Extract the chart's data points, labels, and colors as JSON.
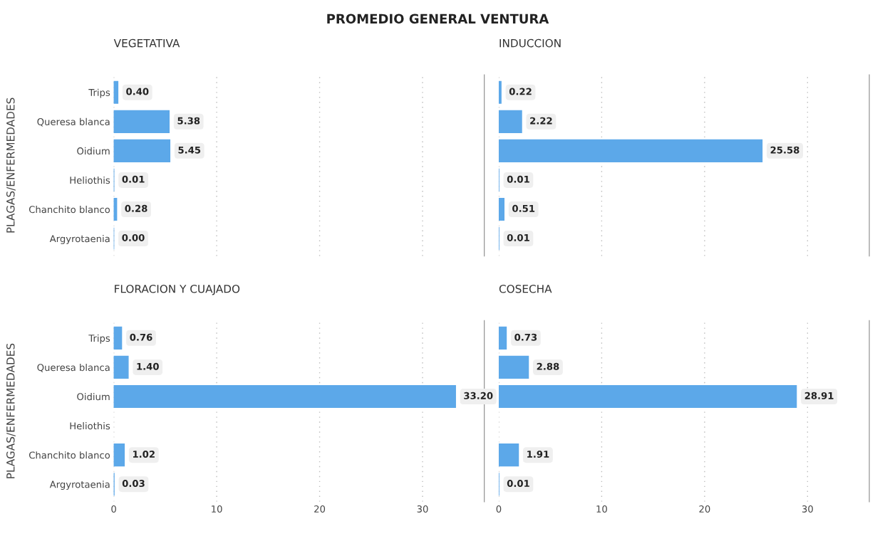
{
  "chart_data": [
    {
      "type": "bar",
      "orientation": "horizontal",
      "title": "VEGETATIVA",
      "ylabel": "PLAGAS/ENFERMEDADES",
      "annotations": [
        "PROMEDIO GENERAL VENTURA"
      ],
      "categories": [
        "Trips",
        "Queresa blanca",
        "Oidium",
        "Heliothis",
        "Chanchito blanco",
        "Argyrotaenia"
      ],
      "values": [
        0.4,
        5.38,
        5.45,
        0.01,
        0.28,
        0.0
      ],
      "value_labels": [
        "0.40",
        "5.38",
        "5.45",
        "0.01",
        "0.28",
        "0.00"
      ],
      "color": "#5ca8e9",
      "xlim": [
        0,
        36
      ],
      "xticks": [
        0,
        10,
        20,
        30
      ],
      "grid": "x",
      "tick_labels": "y"
    },
    {
      "type": "bar",
      "orientation": "horizontal",
      "title": "INDUCCION",
      "categories": [
        null,
        null,
        null,
        null,
        null,
        null
      ],
      "values": [
        0.22,
        2.22,
        25.58,
        0.01,
        0.51,
        0.01
      ],
      "value_labels": [
        "0.22",
        "2.22",
        "25.58",
        "0.01",
        "0.51",
        "0.01"
      ],
      "color": "#5ca8e9",
      "xlim": [
        0,
        36
      ],
      "xticks": [
        0,
        10,
        20,
        30
      ],
      "grid": "x",
      "tick_labels": false
    },
    {
      "type": "bar",
      "orientation": "horizontal",
      "title": "FLORACION Y CUAJADO",
      "ylabel": "PLAGAS/ENFERMEDADES",
      "categories": [
        "Trips",
        "Queresa blanca",
        "Oidium",
        "Heliothis",
        "Chanchito blanco",
        "Argyrotaenia"
      ],
      "values": [
        0.76,
        1.4,
        33.2,
        null,
        1.02,
        0.03
      ],
      "value_labels": [
        "0.76",
        "1.40",
        "33.20",
        null,
        "1.02",
        "0.03"
      ],
      "color": "#5ca8e9",
      "xlim": [
        0,
        36
      ],
      "xticks": [
        0,
        10,
        20,
        30
      ],
      "grid": "x"
    },
    {
      "type": "bar",
      "orientation": "horizontal",
      "title": "COSECHA",
      "categories": [
        null,
        null,
        null,
        null,
        null,
        null
      ],
      "values": [
        0.73,
        2.88,
        28.91,
        null,
        1.91,
        0.01
      ],
      "value_labels": [
        "0.73",
        "2.88",
        "28.91",
        null,
        "1.91",
        "0.01"
      ],
      "color": "#5ca8e9",
      "xlim": [
        0,
        36
      ],
      "xticks": [
        0,
        10,
        20,
        30
      ],
      "grid": "x",
      "tick_labels": "x"
    }
  ]
}
